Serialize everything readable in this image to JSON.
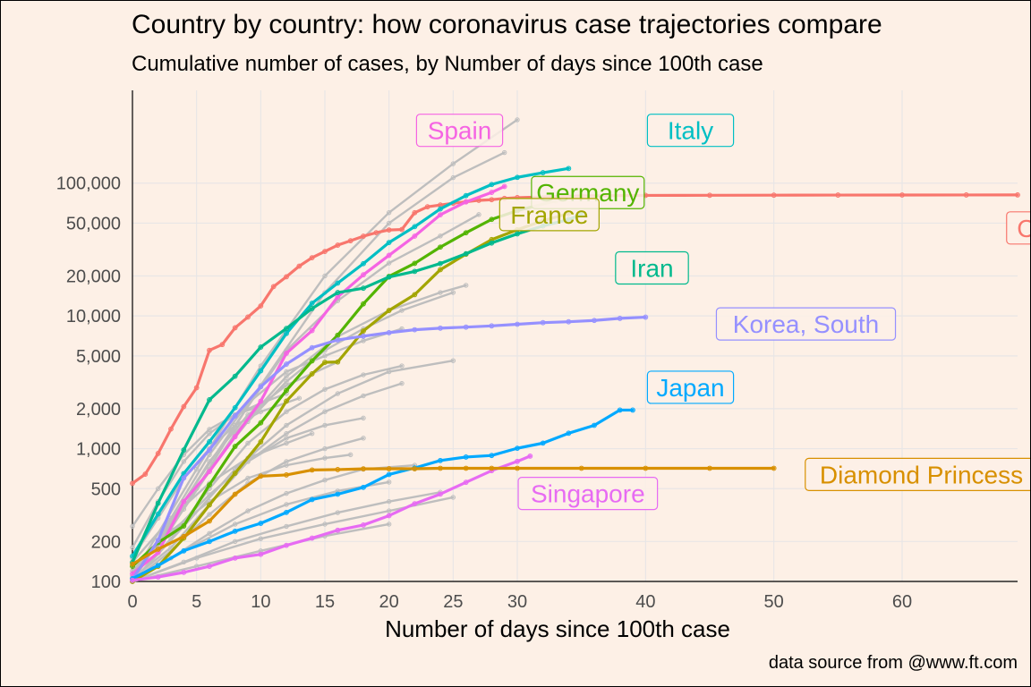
{
  "chart_data": {
    "type": "line",
    "title": "Country by country: how coronavirus case trajectories compare",
    "subtitle": "Cumulative number of cases, by Number of days since 100th case",
    "xlabel": "Number of days since 100th case",
    "ylabel": "",
    "caption": "data source from @www.ft.com",
    "y_scale": "log",
    "xlim": [
      0,
      69
    ],
    "ylim": [
      100,
      500000
    ],
    "x_ticks": [
      0,
      5,
      10,
      15,
      20,
      25,
      30,
      40,
      50,
      60
    ],
    "x_tick_labels": [
      "0",
      "5",
      "10",
      "15",
      "20",
      "25",
      "30",
      "40",
      "50",
      "60"
    ],
    "y_ticks": [
      100,
      200,
      500,
      1000,
      2000,
      5000,
      10000,
      20000,
      50000,
      100000
    ],
    "y_tick_labels": [
      "100",
      "200",
      "500",
      "1,000",
      "2,000",
      "5,000",
      "10,000",
      "20,000",
      "50,000",
      "100,000"
    ],
    "grid": true,
    "legend": "direct labels on lines",
    "background_color": "#fdf0e6",
    "other_countries_color": "#bebebe",
    "highlighted_series": [
      {
        "name": "China",
        "color": "#f8766d",
        "x": [
          0,
          1,
          2,
          3,
          4,
          5,
          6,
          7,
          8,
          9,
          10,
          11,
          12,
          13,
          14,
          15,
          16,
          17,
          18,
          19,
          20,
          21,
          22,
          23,
          24,
          25,
          26,
          27,
          28,
          29,
          30,
          35,
          40,
          45,
          50,
          55,
          60,
          65,
          69
        ],
        "y": [
          548,
          643,
          920,
          1406,
          2075,
          2877,
          5509,
          6087,
          8141,
          9802,
          11891,
          16630,
          19716,
          23707,
          27440,
          30587,
          34110,
          36814,
          39829,
          42354,
          44386,
          44759,
          59895,
          66358,
          68413,
          70513,
          72434,
          74211,
          75077,
          76760,
          77754,
          80250,
          80860,
          81030,
          81170,
          81310,
          81420,
          81480,
          81520
        ]
      },
      {
        "name": "Italy",
        "color": "#00bfc4",
        "x": [
          0,
          2,
          4,
          6,
          8,
          10,
          12,
          14,
          16,
          18,
          20,
          22,
          24,
          26,
          28,
          30,
          32,
          34
        ],
        "y": [
          155,
          322,
          650,
          1128,
          2036,
          3858,
          7375,
          12462,
          17660,
          24747,
          35713,
          47021,
          63927,
          80589,
          97689,
          110574,
          119827,
          128948
        ]
      },
      {
        "name": "Spain",
        "color": "#f564e3",
        "x": [
          0,
          2,
          4,
          6,
          8,
          10,
          12,
          14,
          16,
          18,
          20,
          22,
          24,
          26,
          28,
          29
        ],
        "y": [
          114,
          165,
          400,
          673,
          1231,
          2277,
          5232,
          7753,
          13910,
          20410,
          28603,
          39885,
          57786,
          72248,
          85195,
          94417
        ]
      },
      {
        "name": "Germany",
        "color": "#53b400",
        "x": [
          0,
          2,
          4,
          6,
          8,
          10,
          12,
          14,
          16,
          18,
          20,
          22,
          24,
          26,
          28,
          30,
          33
        ],
        "y": [
          130,
          196,
          262,
          534,
          1040,
          1565,
          2745,
          4585,
          7156,
          12327,
          19848,
          24873,
          32986,
          42288,
          53340,
          62095,
          73522
        ]
      },
      {
        "name": "France",
        "color": "#a58aff",
        "hidden_note": "",
        "x": [],
        "y": []
      },
      {
        "name": "France",
        "color": "#a3a500",
        "x": [
          0,
          2,
          4,
          6,
          8,
          10,
          12,
          14,
          15,
          16,
          18,
          20,
          22,
          24,
          26,
          28,
          30,
          32,
          34
        ],
        "y": [
          100,
          130,
          212,
          377,
          653,
          1126,
          2281,
          3661,
          4469,
          4499,
          7699,
          10995,
          14459,
          22304,
          29155,
          37575,
          44550,
          52128,
          59105
        ]
      },
      {
        "name": "Iran",
        "color": "#00b98d",
        "x": [
          0,
          2,
          4,
          6,
          8,
          10,
          12,
          14,
          16,
          18,
          20,
          22,
          24,
          26,
          28,
          30,
          32,
          34,
          35
        ],
        "y": [
          139,
          388,
          978,
          2336,
          3513,
          5823,
          8042,
          11364,
          14991,
          16169,
          19644,
          21638,
          24811,
          29406,
          35408,
          41495,
          47593,
          53183,
          58226
        ]
      },
      {
        "name": "Korea, South",
        "color": "#9590ff",
        "x": [
          0,
          2,
          4,
          6,
          8,
          10,
          12,
          14,
          16,
          18,
          20,
          22,
          24,
          26,
          28,
          30,
          32,
          34,
          36,
          38,
          40
        ],
        "y": [
          104,
          204,
          602,
          977,
          1766,
          2931,
          4335,
          5766,
          6593,
          7041,
          7478,
          7869,
          8086,
          8236,
          8413,
          8652,
          8897,
          9037,
          9241,
          9583,
          9786
        ]
      },
      {
        "name": "Japan",
        "color": "#00a9ff",
        "x": [
          0,
          2,
          4,
          6,
          8,
          10,
          12,
          14,
          16,
          18,
          20,
          22,
          24,
          26,
          28,
          30,
          32,
          34,
          36,
          38,
          39
        ],
        "y": [
          105,
          132,
          170,
          200,
          239,
          274,
          331,
          414,
          454,
          511,
          639,
          716,
          814,
          865,
          889,
          1007,
          1101,
          1307,
          1499,
          1953,
          1953
        ]
      },
      {
        "name": "Singapore",
        "color": "#e76bf3",
        "x": [
          0,
          2,
          4,
          6,
          8,
          10,
          12,
          14,
          16,
          18,
          20,
          22,
          24,
          26,
          28,
          30,
          31
        ],
        "y": [
          102,
          108,
          117,
          130,
          150,
          160,
          187,
          212,
          243,
          266,
          313,
          385,
          455,
          558,
          683,
          802,
          879
        ]
      },
      {
        "name": "Diamond Princess",
        "color": "#d89000",
        "x": [
          0,
          2,
          4,
          6,
          8,
          10,
          12,
          14,
          16,
          18,
          20,
          22,
          24,
          26,
          28,
          30,
          35,
          40,
          45,
          50
        ],
        "y": [
          135,
          175,
          218,
          285,
          454,
          621,
          634,
          691,
          696,
          705,
          706,
          706,
          712,
          712,
          712,
          712,
          712,
          712,
          712,
          712
        ]
      }
    ],
    "labels": [
      {
        "text": "Spain",
        "color": "#f564e3",
        "x": 25.5,
        "y": 250000
      },
      {
        "text": "Italy",
        "color": "#00bfc4",
        "x": 43.5,
        "y": 250000
      },
      {
        "text": "Germany",
        "color": "#53b400",
        "x": 35.5,
        "y": 85000
      },
      {
        "text": "France",
        "color": "#a3a500",
        "x": 32.5,
        "y": 58000
      },
      {
        "text": "China",
        "color": "#f8766d",
        "x": 71.5,
        "y": 46000
      },
      {
        "text": "Iran",
        "color": "#00b98d",
        "x": 40.5,
        "y": 23000
      },
      {
        "text": "Korea, South",
        "color": "#9590ff",
        "x": 52.5,
        "y": 8700
      },
      {
        "text": "Japan",
        "color": "#00a9ff",
        "x": 43.5,
        "y": 2900
      },
      {
        "text": "Diamond Princess",
        "color": "#d89000",
        "x": 61.5,
        "y": 640
      },
      {
        "text": "Singapore",
        "color": "#e76bf3",
        "x": 35.5,
        "y": 460
      }
    ],
    "other_countries": [
      {
        "x": [
          0,
          5,
          10,
          15,
          20,
          25,
          30
        ],
        "y": [
          110,
          700,
          4200,
          20000,
          60000,
          140000,
          300000
        ]
      },
      {
        "x": [
          0,
          5,
          10,
          15,
          20,
          25,
          29
        ],
        "y": [
          105,
          500,
          3000,
          15000,
          50000,
          110000,
          170000
        ]
      },
      {
        "x": [
          0,
          4,
          8,
          12,
          16,
          20,
          24,
          27
        ],
        "y": [
          100,
          400,
          1500,
          5500,
          13000,
          25000,
          40000,
          58000
        ]
      },
      {
        "x": [
          0,
          4,
          8,
          12,
          16,
          20,
          24,
          26
        ],
        "y": [
          110,
          350,
          1300,
          3500,
          7000,
          11000,
          15000,
          17000
        ]
      },
      {
        "x": [
          0,
          3,
          6,
          9,
          12,
          15,
          18,
          21,
          25
        ],
        "y": [
          120,
          250,
          700,
          1600,
          3200,
          5500,
          8000,
          11000,
          15000
        ]
      },
      {
        "x": [
          0,
          4,
          8,
          12,
          16,
          20,
          25
        ],
        "y": [
          100,
          260,
          700,
          1500,
          2600,
          3800,
          4600
        ]
      },
      {
        "x": [
          0,
          3,
          6,
          9,
          12,
          15,
          18,
          21
        ],
        "y": [
          100,
          210,
          500,
          1100,
          1900,
          2800,
          3600,
          4200
        ]
      },
      {
        "x": [
          0,
          3,
          6,
          9,
          12,
          15,
          18,
          21
        ],
        "y": [
          105,
          180,
          380,
          800,
          1300,
          1900,
          2500,
          3100
        ]
      },
      {
        "x": [
          0,
          3,
          6,
          9,
          12,
          15,
          18
        ],
        "y": [
          120,
          230,
          450,
          800,
          1200,
          1500,
          1700
        ]
      },
      {
        "x": [
          0,
          3,
          6,
          9,
          12,
          15,
          18
        ],
        "y": [
          100,
          170,
          320,
          550,
          800,
          1000,
          1200
        ]
      },
      {
        "x": [
          0,
          3,
          6,
          9,
          12,
          15,
          17
        ],
        "y": [
          130,
          240,
          400,
          600,
          750,
          850,
          900
        ]
      },
      {
        "x": [
          0,
          3,
          6,
          9,
          12,
          15,
          18,
          22
        ],
        "y": [
          100,
          150,
          230,
          340,
          460,
          580,
          700,
          750
        ]
      },
      {
        "x": [
          0,
          4,
          8,
          12,
          16,
          20
        ],
        "y": [
          100,
          170,
          270,
          380,
          480,
          560
        ]
      },
      {
        "x": [
          0,
          4,
          8,
          12,
          16,
          20,
          24
        ],
        "y": [
          100,
          140,
          200,
          260,
          330,
          400,
          470
        ]
      },
      {
        "x": [
          0,
          5,
          10,
          15,
          20,
          25
        ],
        "y": [
          100,
          150,
          210,
          270,
          340,
          430
        ]
      },
      {
        "x": [
          0,
          5,
          10,
          15,
          20
        ],
        "y": [
          100,
          130,
          170,
          220,
          270
        ]
      },
      {
        "x": [
          0,
          2,
          4,
          6,
          8,
          10,
          13
        ],
        "y": [
          150,
          300,
          600,
          1000,
          1500,
          1900,
          2400
        ]
      },
      {
        "x": [
          0,
          2,
          4,
          6,
          8,
          10,
          12
        ],
        "y": [
          180,
          400,
          800,
          1300,
          1800,
          2200,
          2600
        ]
      },
      {
        "x": [
          0,
          3,
          6,
          9,
          12,
          14
        ],
        "y": [
          140,
          300,
          550,
          850,
          1100,
          1300
        ]
      },
      {
        "x": [
          0,
          2,
          4,
          6,
          8,
          10
        ],
        "y": [
          260,
          500,
          900,
          1400,
          1800,
          2100
        ]
      },
      {
        "x": [
          0,
          3,
          6,
          9,
          12,
          15,
          18,
          21
        ],
        "y": [
          100,
          300,
          900,
          2200,
          3800,
          5000,
          6500,
          8000
        ]
      },
      {
        "x": [
          0,
          3,
          6,
          9,
          12,
          16
        ],
        "y": [
          100,
          280,
          800,
          1800,
          3000,
          4500
        ]
      }
    ]
  }
}
